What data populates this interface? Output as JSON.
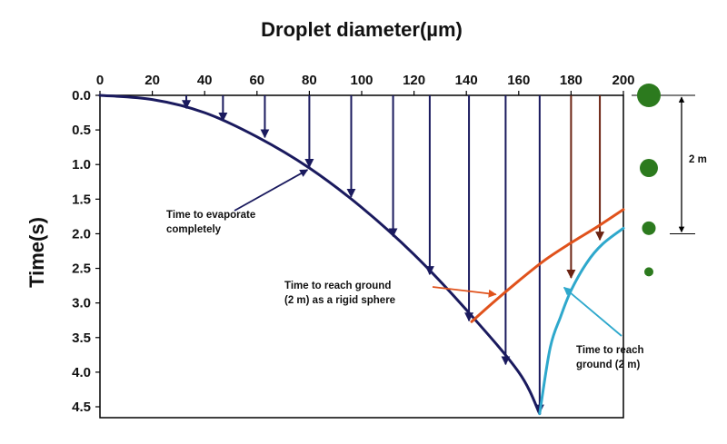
{
  "chart_data": {
    "type": "line",
    "title": "Droplet diameter(µm)",
    "xlabel": "Droplet diameter(µm)",
    "ylabel": "Time(s)",
    "xlim": [
      0,
      200
    ],
    "ylim": [
      4.6,
      0
    ],
    "x_ticks": [
      0,
      20,
      40,
      60,
      80,
      100,
      120,
      140,
      160,
      180,
      200
    ],
    "x_tick_labels": [
      "0",
      "20",
      "40",
      "60",
      "80",
      "100",
      "120",
      "140",
      "160",
      "180",
      "200"
    ],
    "y_ticks": [
      0.0,
      0.5,
      1.0,
      1.5,
      2.0,
      2.5,
      3.0,
      3.5,
      4.0,
      4.5
    ],
    "y_tick_labels": [
      "0.0",
      "0.5",
      "1.0",
      "1.5",
      "2.0",
      "2.5",
      "3.0",
      "3.5",
      "4.0",
      "4.5"
    ],
    "grid": false,
    "series": [
      {
        "color": "#1a1a5e",
        "x": [
          0,
          20,
          40,
          60,
          80,
          100,
          120,
          140,
          160,
          168
        ],
        "y": [
          0.0,
          0.06,
          0.25,
          0.6,
          1.05,
          1.62,
          2.3,
          3.1,
          4.0,
          4.6
        ]
      },
      {
        "color": "#e0521c",
        "x": [
          142,
          150,
          160,
          170,
          180,
          190,
          200
        ],
        "y": [
          3.27,
          3.0,
          2.68,
          2.38,
          2.13,
          1.9,
          1.65
        ]
      },
      {
        "color": "#2ea8cc",
        "x": [
          168,
          172,
          176,
          180,
          186,
          192,
          200
        ],
        "y": [
          4.6,
          3.65,
          3.2,
          2.82,
          2.42,
          2.15,
          1.92
        ]
      }
    ],
    "arrows": [
      {
        "x": 33,
        "y_end": 0.2,
        "color": "#1a1a5e"
      },
      {
        "x": 47,
        "y_end": 0.38,
        "color": "#1a1a5e"
      },
      {
        "x": 63,
        "y_end": 0.62,
        "color": "#1a1a5e"
      },
      {
        "x": 80,
        "y_end": 1.05,
        "color": "#1a1a5e"
      },
      {
        "x": 96,
        "y_end": 1.48,
        "color": "#1a1a5e"
      },
      {
        "x": 112,
        "y_end": 2.05,
        "color": "#1a1a5e"
      },
      {
        "x": 126,
        "y_end": 2.6,
        "color": "#1a1a5e"
      },
      {
        "x": 141,
        "y_end": 3.27,
        "color": "#1a1a5e"
      },
      {
        "x": 155,
        "y_end": 3.9,
        "color": "#1a1a5e"
      },
      {
        "x": 168,
        "y_end": 4.6,
        "color": "#1a1a5e"
      },
      {
        "x": 180,
        "y_end": 2.65,
        "color": "#6b2312"
      },
      {
        "x": 191,
        "y_end": 2.1,
        "color": "#6b2312"
      }
    ],
    "annotations": [
      {
        "lines": [
          "Time to evaporate",
          "completely"
        ],
        "pointer_x": 80,
        "pointer_y": 1.05,
        "pointer_color": "#1a1a5e"
      },
      {
        "lines": [
          "Time to reach ground",
          "(2 m) as a rigid sphere"
        ],
        "pointer_x": 152,
        "pointer_y": 2.85,
        "pointer_color": "#e0521c"
      },
      {
        "lines": [
          "Time to reach",
          "ground (2 m)"
        ],
        "pointer_x": 178,
        "pointer_y": 2.75,
        "pointer_color": "#2ea8cc"
      }
    ],
    "side_scale": {
      "label": "2 m"
    },
    "droplet_color": "#2c7a1e",
    "droplet_sizes": [
      4,
      3,
      2,
      1
    ]
  }
}
